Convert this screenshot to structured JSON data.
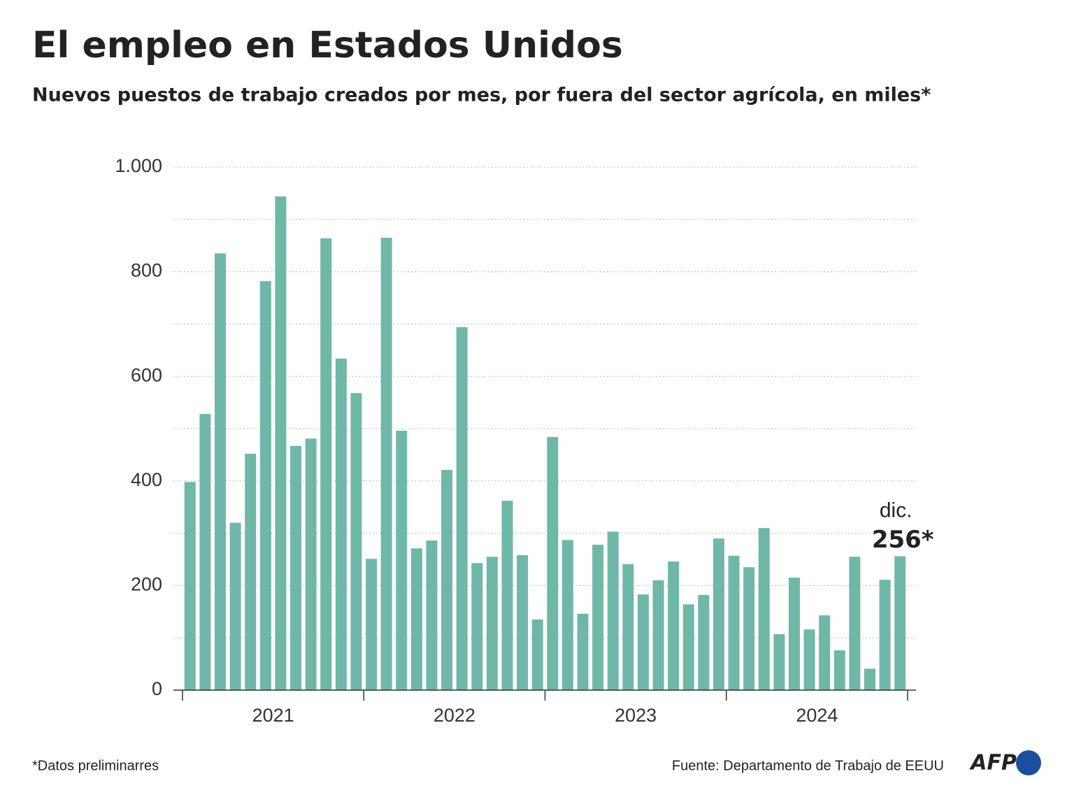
{
  "chart_data": {
    "type": "bar",
    "title": "El empleo en Estados Unidos",
    "subtitle": "Nuevos puestos de trabajo creados por mes, por fuera del sector agrícola, en miles*",
    "categories": [
      null,
      null,
      null,
      null,
      null,
      null,
      null,
      null,
      null,
      null,
      null,
      null,
      null,
      null,
      null,
      null,
      null,
      null,
      null,
      null,
      null,
      null,
      null,
      null,
      null,
      null,
      null,
      null,
      null,
      null,
      null,
      null,
      null,
      null,
      null,
      null,
      null,
      null,
      null,
      null,
      null,
      null,
      null,
      null,
      null,
      null,
      null,
      null
    ],
    "year_groups": [
      "2021",
      "2022",
      "2023",
      "2024"
    ],
    "values": [
      398,
      528,
      835,
      320,
      452,
      782,
      944,
      467,
      481,
      864,
      634,
      568,
      251,
      865,
      496,
      271,
      286,
      421,
      694,
      243,
      255,
      362,
      258,
      135,
      484,
      287,
      146,
      278,
      303,
      241,
      183,
      210,
      246,
      164,
      182,
      290,
      257,
      235,
      310,
      107,
      215,
      116,
      143,
      76,
      255,
      41,
      211,
      256
    ],
    "value_labels": [
      null,
      null,
      null,
      null,
      null,
      null,
      null,
      null,
      null,
      null,
      null,
      null,
      null,
      null,
      null,
      null,
      null,
      null,
      null,
      null,
      null,
      null,
      null,
      null,
      null,
      null,
      null,
      null,
      null,
      null,
      null,
      null,
      null,
      null,
      null,
      null,
      null,
      null,
      null,
      null,
      null,
      null,
      null,
      null,
      null,
      null,
      null,
      "256*"
    ],
    "annotation": "dic.",
    "color": "#6fb8a7",
    "ylim": [
      0,
      1000
    ],
    "yticks": [
      0,
      200,
      400,
      600,
      800,
      {
        "value": 1000,
        "label": "1.000"
      }
    ],
    "minor_yticks": [
      100,
      300,
      500,
      700,
      900
    ],
    "grid": true,
    "footnote": "*Datos preliminarres",
    "source": "Fuente: Departamento de Trabajo de EEUU",
    "logo": "AFP"
  }
}
